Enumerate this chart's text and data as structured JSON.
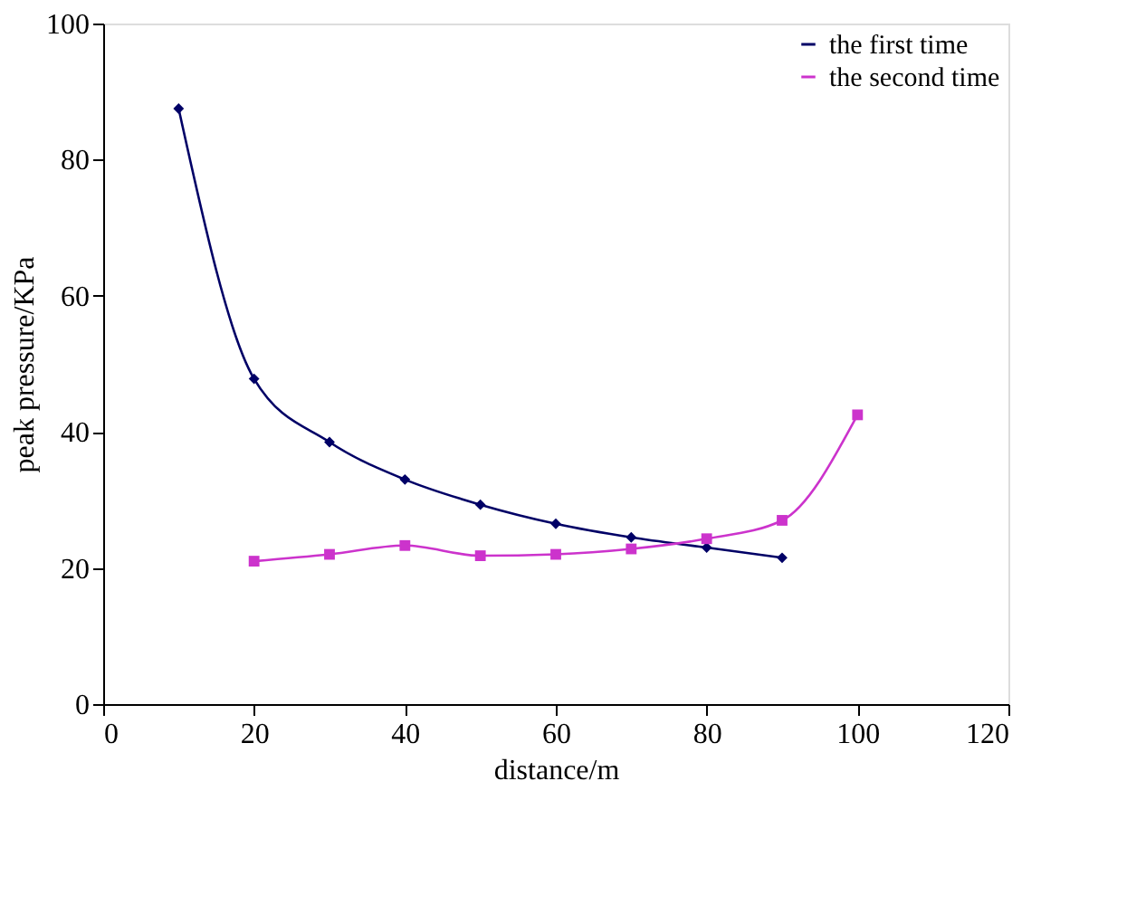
{
  "chart_data": {
    "type": "line",
    "xlabel": "distance/m",
    "ylabel": "peak pressure/KPa",
    "series": [
      {
        "name": "the first time",
        "color": "#000066",
        "marker": "diamond",
        "x": [
          10,
          20,
          30,
          40,
          50,
          60,
          70,
          80,
          90
        ],
        "values": [
          87.5,
          47.8,
          38.5,
          33,
          29.3,
          26.5,
          24.5,
          23,
          21.5
        ]
      },
      {
        "name": "the second time",
        "color": "#cc33cc",
        "marker": "square",
        "x": [
          20,
          30,
          40,
          50,
          60,
          70,
          80,
          90,
          100
        ],
        "values": [
          21,
          22,
          23.3,
          21.8,
          22,
          22.8,
          24.3,
          27,
          42.5
        ]
      }
    ],
    "xlim": [
      0,
      120
    ],
    "xticks": [
      0,
      20,
      40,
      60,
      80,
      100,
      120
    ],
    "ylim": [
      0,
      100
    ],
    "yticks": [
      0,
      20,
      40,
      60,
      80,
      100
    ],
    "grid": false,
    "legend": "top right",
    "line_style": "solid"
  }
}
